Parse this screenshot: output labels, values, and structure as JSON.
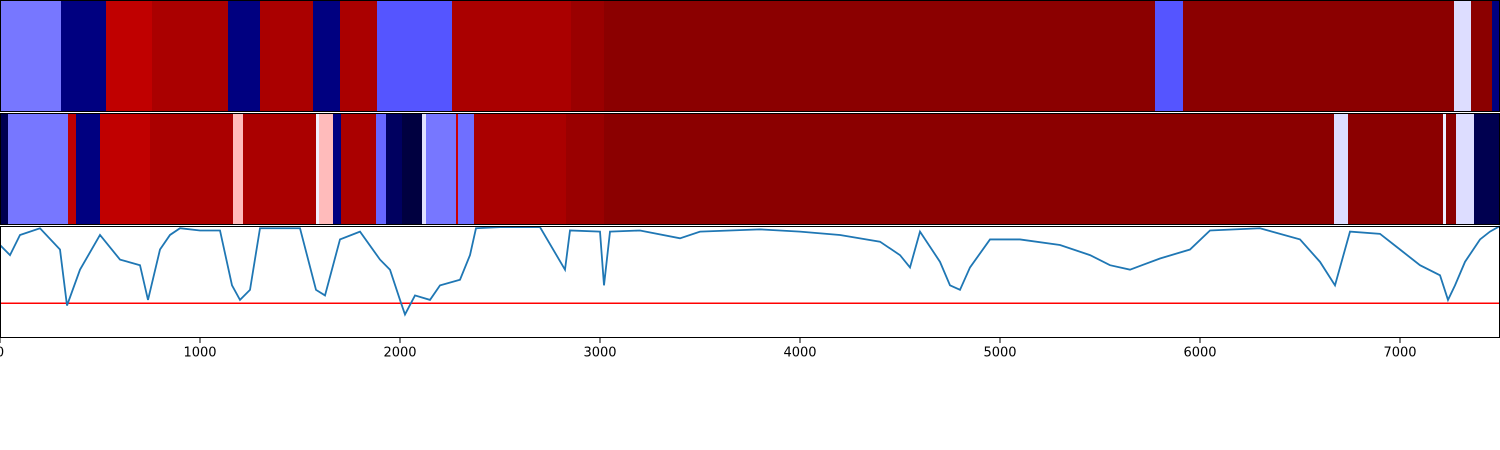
{
  "chart_data": [
    {
      "type": "segments",
      "xlim": [
        0,
        7500
      ],
      "edges": [
        0,
        305,
        530,
        760,
        1140,
        1300,
        1565,
        1700,
        1885,
        2260,
        2855,
        3020,
        5775,
        5915,
        7270,
        7355,
        7460,
        7500
      ],
      "colors": [
        "#7777ff",
        "#000080",
        "#c00000",
        "#aa0000",
        "#000080",
        "#aa0000",
        "#000080",
        "#aa0000",
        "#5555ff",
        "#aa0000",
        "#9a0000",
        "#8b0000",
        "#5555ff",
        "#8b0000",
        "#ddddff",
        "#8b0000",
        "#000080"
      ]
    },
    {
      "type": "segments",
      "xlim": [
        0,
        7500
      ],
      "edges": [
        0,
        40,
        340,
        380,
        500,
        750,
        1165,
        1215,
        1580,
        1595,
        1665,
        1705,
        1880,
        1930,
        2010,
        2110,
        2130,
        2280,
        2290,
        2370,
        2830,
        3020,
        6670,
        6740,
        7215,
        7230,
        7280,
        7370,
        7500
      ],
      "colors": [
        "#000050",
        "#7777ff",
        "#c00000",
        "#000080",
        "#c00000",
        "#aa0000",
        "#ffbbbb",
        "#aa0000",
        "#f0f0ff",
        "#ffbbbb",
        "#000080",
        "#aa0000",
        "#6666ff",
        "#000060",
        "#000040",
        "#e0e0ff",
        "#7777ff",
        "#cc0000",
        "#6f6fff",
        "#aa0000",
        "#9a0000",
        "#8b0000",
        "#ddddff",
        "#8b0000",
        "#eeeeff",
        "#8b0000",
        "#ddddff",
        "#000050"
      ]
    },
    {
      "type": "line",
      "color": "#1f77b4",
      "xlim": [
        0,
        7500
      ],
      "ylim": [
        0,
        1
      ],
      "xticks": [
        0,
        1000,
        2000,
        3000,
        4000,
        5000,
        6000,
        7000
      ],
      "hline": {
        "value": 0.31,
        "color": "#ff0000"
      },
      "x": [
        0,
        50,
        100,
        200,
        300,
        335,
        400,
        500,
        600,
        700,
        740,
        800,
        850,
        900,
        1000,
        1100,
        1160,
        1200,
        1250,
        1300,
        1400,
        1500,
        1580,
        1625,
        1700,
        1800,
        1900,
        1950,
        2000,
        2025,
        2075,
        2150,
        2200,
        2300,
        2350,
        2380,
        2500,
        2700,
        2825,
        2850,
        3000,
        3020,
        3050,
        3200,
        3400,
        3500,
        3800,
        4000,
        4200,
        4400,
        4500,
        4550,
        4600,
        4700,
        4750,
        4800,
        4850,
        4950,
        5100,
        5300,
        5450,
        5550,
        5650,
        5800,
        5950,
        6050,
        6300,
        6500,
        6600,
        6675,
        6750,
        6900,
        7000,
        7100,
        7200,
        7240,
        7275,
        7325,
        7400,
        7450,
        7500
      ],
      "values": [
        0.83,
        0.74,
        0.92,
        0.98,
        0.79,
        0.29,
        0.61,
        0.92,
        0.7,
        0.65,
        0.34,
        0.79,
        0.92,
        0.98,
        0.96,
        0.96,
        0.47,
        0.34,
        0.43,
        0.98,
        0.98,
        0.98,
        0.43,
        0.38,
        0.88,
        0.95,
        0.7,
        0.61,
        0.34,
        0.21,
        0.38,
        0.34,
        0.47,
        0.52,
        0.74,
        0.98,
        0.99,
        0.99,
        0.61,
        0.96,
        0.95,
        0.47,
        0.95,
        0.96,
        0.89,
        0.95,
        0.97,
        0.95,
        0.92,
        0.86,
        0.74,
        0.63,
        0.95,
        0.68,
        0.47,
        0.43,
        0.63,
        0.88,
        0.88,
        0.83,
        0.74,
        0.65,
        0.61,
        0.71,
        0.79,
        0.96,
        0.98,
        0.88,
        0.68,
        0.47,
        0.95,
        0.93,
        0.79,
        0.65,
        0.56,
        0.34,
        0.47,
        0.68,
        0.88,
        0.95,
        1.0
      ]
    }
  ]
}
